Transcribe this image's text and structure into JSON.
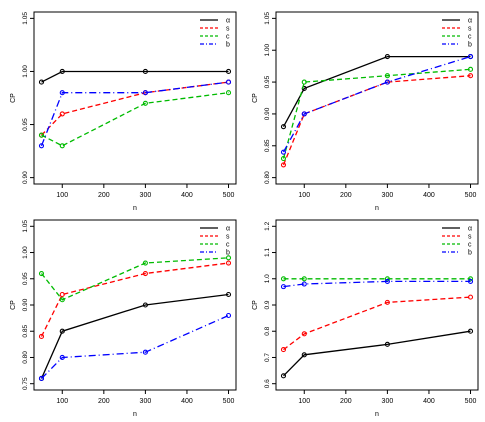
{
  "chart_data": [
    {
      "type": "line",
      "xlabel": "n",
      "ylabel": "CP",
      "x": [
        50,
        100,
        300,
        500
      ],
      "xlim": [
        50,
        500
      ],
      "ylim": [
        0.9,
        1.05
      ],
      "xticks": [
        100,
        200,
        300,
        400,
        500
      ],
      "yticks": [
        0.9,
        0.95,
        1.0,
        1.05
      ],
      "ytick_labels": [
        "0.90",
        "0.95",
        "1.00",
        "1.05"
      ],
      "legend_position": "top-right",
      "series": [
        {
          "name": "α",
          "color": "#000000",
          "dash": "solid",
          "values": [
            0.99,
            1.0,
            1.0,
            1.0
          ]
        },
        {
          "name": "s",
          "color": "#ff0000",
          "dash": "dashed",
          "values": [
            0.94,
            0.96,
            0.98,
            0.99
          ]
        },
        {
          "name": "c",
          "color": "#00bb00",
          "dash": "dashed",
          "values": [
            0.94,
            0.93,
            0.97,
            0.98
          ]
        },
        {
          "name": "b",
          "color": "#0000ff",
          "dash": "dashdot",
          "values": [
            0.93,
            0.98,
            0.98,
            0.99
          ]
        }
      ]
    },
    {
      "type": "line",
      "xlabel": "n",
      "ylabel": "CP",
      "x": [
        50,
        100,
        300,
        500
      ],
      "xlim": [
        50,
        500
      ],
      "ylim": [
        0.8,
        1.05
      ],
      "xticks": [
        100,
        200,
        300,
        400,
        500
      ],
      "yticks": [
        0.8,
        0.85,
        0.9,
        0.95,
        1.0,
        1.05
      ],
      "ytick_labels": [
        "0.80",
        "0.85",
        "0.90",
        "0.95",
        "1.00",
        "1.05"
      ],
      "legend_position": "top-right",
      "series": [
        {
          "name": "α",
          "color": "#000000",
          "dash": "solid",
          "values": [
            0.88,
            0.94,
            0.99,
            0.99
          ]
        },
        {
          "name": "s",
          "color": "#ff0000",
          "dash": "dashed",
          "values": [
            0.82,
            0.9,
            0.95,
            0.96
          ]
        },
        {
          "name": "c",
          "color": "#00bb00",
          "dash": "dashed",
          "values": [
            0.83,
            0.95,
            0.96,
            0.97
          ]
        },
        {
          "name": "b",
          "color": "#0000ff",
          "dash": "dashdot",
          "values": [
            0.84,
            0.9,
            0.95,
            0.99
          ]
        }
      ]
    },
    {
      "type": "line",
      "xlabel": "n",
      "ylabel": "CP",
      "x": [
        50,
        100,
        300,
        500
      ],
      "xlim": [
        50,
        500
      ],
      "ylim": [
        0.75,
        1.05
      ],
      "xticks": [
        100,
        200,
        300,
        400,
        500
      ],
      "yticks": [
        0.75,
        0.8,
        0.85,
        0.9,
        0.95,
        1.0,
        1.05
      ],
      "ytick_labels": [
        "0.75",
        "0.80",
        "0.85",
        "0.90",
        "0.95",
        "1.00",
        "1.05"
      ],
      "legend_position": "top-right",
      "series": [
        {
          "name": "α",
          "color": "#000000",
          "dash": "solid",
          "values": [
            0.76,
            0.85,
            0.9,
            0.92
          ]
        },
        {
          "name": "s",
          "color": "#ff0000",
          "dash": "dashed",
          "values": [
            0.84,
            0.92,
            0.96,
            0.98
          ]
        },
        {
          "name": "c",
          "color": "#00bb00",
          "dash": "dashed",
          "values": [
            0.96,
            0.91,
            0.98,
            0.99
          ]
        },
        {
          "name": "b",
          "color": "#0000ff",
          "dash": "dashdot",
          "values": [
            0.76,
            0.8,
            0.81,
            0.88
          ]
        }
      ]
    },
    {
      "type": "line",
      "xlabel": "n",
      "ylabel": "CP",
      "x": [
        50,
        100,
        300,
        500
      ],
      "xlim": [
        50,
        500
      ],
      "ylim": [
        0.6,
        1.2
      ],
      "xticks": [
        100,
        200,
        300,
        400,
        500
      ],
      "yticks": [
        0.6,
        0.7,
        0.8,
        0.9,
        1.0,
        1.1,
        1.2
      ],
      "ytick_labels": [
        "0.6",
        "0.7",
        "0.8",
        "0.9",
        "1.0",
        "1.1",
        "1.2"
      ],
      "legend_position": "top-right",
      "series": [
        {
          "name": "α",
          "color": "#000000",
          "dash": "solid",
          "values": [
            0.63,
            0.71,
            0.75,
            0.8
          ]
        },
        {
          "name": "s",
          "color": "#ff0000",
          "dash": "dashed",
          "values": [
            0.73,
            0.79,
            0.91,
            0.93
          ]
        },
        {
          "name": "c",
          "color": "#00bb00",
          "dash": "dashed",
          "values": [
            1.0,
            1.0,
            1.0,
            1.0
          ]
        },
        {
          "name": "b",
          "color": "#0000ff",
          "dash": "dashdot",
          "values": [
            0.97,
            0.98,
            0.99,
            0.99
          ]
        }
      ]
    }
  ]
}
